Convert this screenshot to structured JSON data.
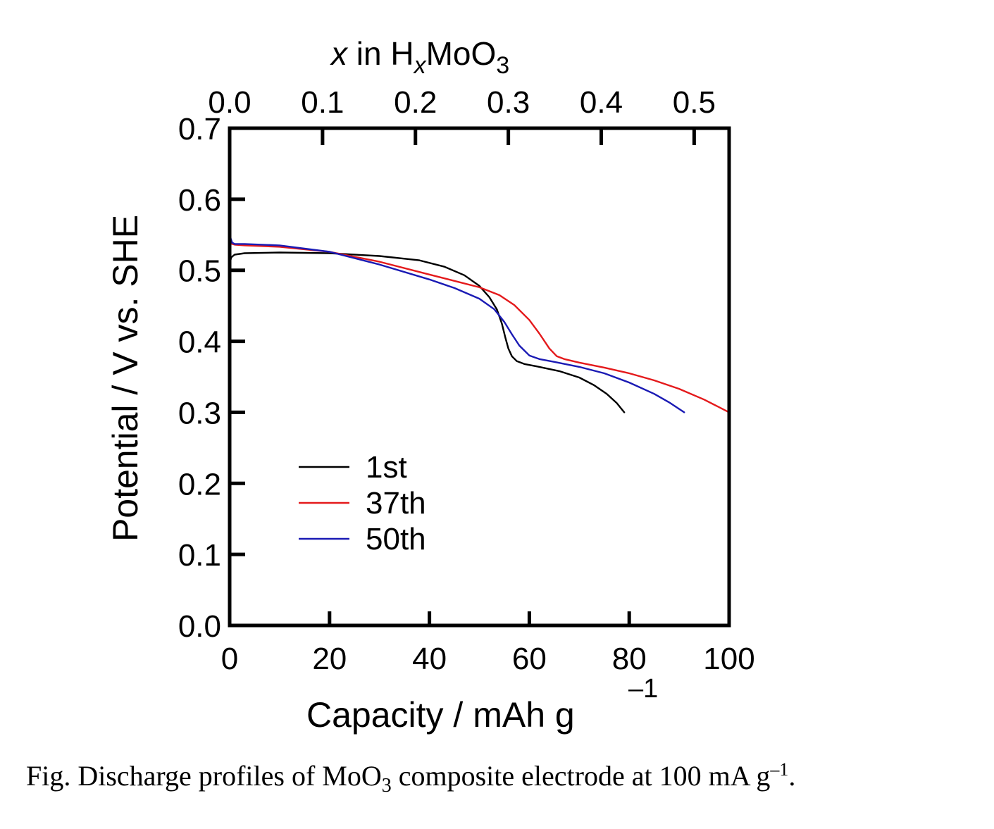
{
  "chart_data": {
    "type": "line",
    "xlabel": "Capacity / mAh g",
    "xlabel_sup": "–1",
    "ylabel": "Potential / V vs. SHE",
    "top_axis_label": {
      "italic_x": "x",
      "in_h": " in H",
      "sub_x": "x",
      "moo": "MoO",
      "sub_3": "3"
    },
    "xlim": [
      0,
      100
    ],
    "ylim": [
      0.0,
      0.7
    ],
    "x_ticks": [
      "0",
      "20",
      "40",
      "60",
      "80",
      "100"
    ],
    "y_ticks": [
      "0.0",
      "0.1",
      "0.2",
      "0.3",
      "0.4",
      "0.5",
      "0.6",
      "0.7"
    ],
    "top_ticks": [
      "0.0",
      "0.1",
      "0.2",
      "0.3",
      "0.4",
      "0.5"
    ],
    "top_tick_positions_capacity": [
      0,
      18.6,
      37.2,
      55.8,
      74.4,
      93.0
    ],
    "grid": false,
    "legend_placement": "lower-left",
    "series": [
      {
        "name": "1st",
        "color": "#000000",
        "x": [
          0,
          0.3,
          1,
          3,
          10,
          20,
          30,
          38,
          43,
          47,
          50,
          52,
          53.5,
          54.5,
          55.2,
          55.8,
          56.5,
          57.5,
          59,
          62,
          66,
          70,
          73,
          75.5,
          77.5,
          79
        ],
        "y": [
          0.508,
          0.518,
          0.522,
          0.524,
          0.525,
          0.524,
          0.52,
          0.514,
          0.505,
          0.493,
          0.478,
          0.462,
          0.445,
          0.425,
          0.405,
          0.39,
          0.379,
          0.372,
          0.368,
          0.364,
          0.358,
          0.349,
          0.338,
          0.326,
          0.313,
          0.3
        ]
      },
      {
        "name": "37th",
        "color": "#e41a1c",
        "x": [
          0,
          0.2,
          0.5,
          1,
          3,
          10,
          20,
          30,
          40,
          45,
          50,
          54,
          57,
          60,
          62,
          64,
          65.5,
          67,
          70,
          75,
          80,
          85,
          90,
          95,
          100
        ],
        "y": [
          0.55,
          0.54,
          0.537,
          0.536,
          0.535,
          0.533,
          0.526,
          0.512,
          0.494,
          0.485,
          0.476,
          0.465,
          0.451,
          0.43,
          0.411,
          0.39,
          0.379,
          0.375,
          0.37,
          0.363,
          0.355,
          0.345,
          0.333,
          0.318,
          0.3
        ]
      },
      {
        "name": "50th",
        "color": "#1a1ab4",
        "x": [
          0,
          0.2,
          0.5,
          1,
          3,
          10,
          20,
          30,
          40,
          45,
          50,
          53,
          55,
          56.5,
          58,
          60,
          62,
          65,
          70,
          75,
          80,
          85,
          88,
          91
        ],
        "y": [
          0.565,
          0.545,
          0.539,
          0.537,
          0.537,
          0.535,
          0.526,
          0.508,
          0.487,
          0.475,
          0.46,
          0.445,
          0.427,
          0.41,
          0.394,
          0.38,
          0.375,
          0.371,
          0.364,
          0.355,
          0.342,
          0.326,
          0.314,
          0.3
        ]
      }
    ]
  },
  "caption": {
    "prefix": "Fig. Discharge profiles of MoO",
    "sub": "3",
    "middle": " composite electrode at 100 mA g",
    "sup": "–1",
    "suffix": "."
  }
}
